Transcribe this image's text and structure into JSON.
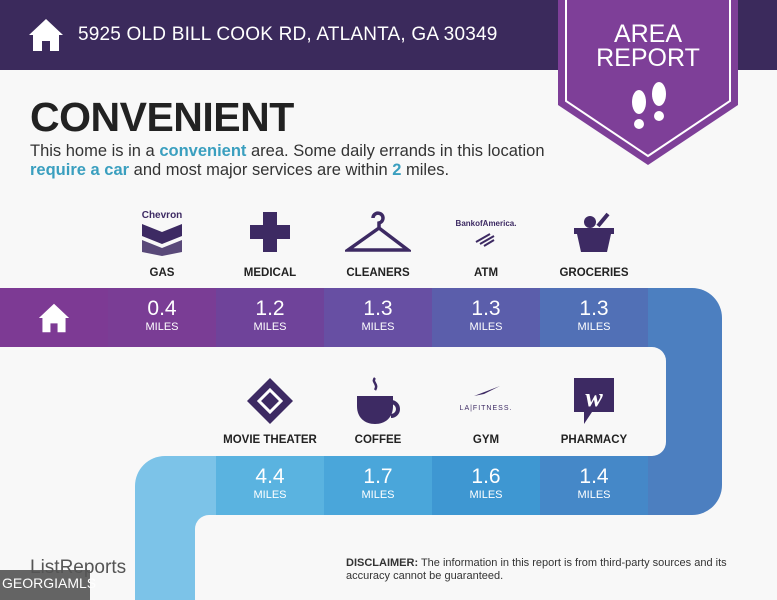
{
  "header": {
    "address": "5925 OLD BILL COOK RD, ATLANTA, GA 30349",
    "home_icon": "house-icon"
  },
  "badge": {
    "line1": "AREA",
    "line2": "REPORT",
    "icon": "footprints-icon"
  },
  "title": "CONVENIENT",
  "description": {
    "p1": "This home is in a ",
    "h1": "convenient",
    "p2": " area. Some daily errands in this location ",
    "h2": "require a car",
    "p3": " and most major services are within ",
    "h3": "2",
    "p4": " miles."
  },
  "row1": [
    {
      "label": "GAS",
      "value": "0.4",
      "unit": "MILES",
      "icon": "chevron-logo-icon",
      "logo_text": "Chevron",
      "color": "#7a3d95"
    },
    {
      "label": "MEDICAL",
      "value": "1.2",
      "unit": "MILES",
      "icon": "medical-cross-icon",
      "color": "#6f439a"
    },
    {
      "label": "CLEANERS",
      "value": "1.3",
      "unit": "MILES",
      "icon": "hanger-icon",
      "color": "#674fa3"
    },
    {
      "label": "ATM",
      "value": "1.3",
      "unit": "MILES",
      "icon": "bank-of-america-logo-icon",
      "logo_text": "BankofAmerica",
      "color": "#5b5eab"
    },
    {
      "label": "GROCERIES",
      "value": "1.3",
      "unit": "MILES",
      "icon": "grocery-basket-icon",
      "color": "#5170b6"
    }
  ],
  "row2": [
    {
      "label": "MOVIE THEATER",
      "value": "4.4",
      "unit": "MILES",
      "icon": "ticket-icon",
      "color": "#5ab3e0"
    },
    {
      "label": "COFFEE",
      "value": "1.7",
      "unit": "MILES",
      "icon": "coffee-cup-icon",
      "color": "#4aa6da"
    },
    {
      "label": "GYM",
      "value": "1.6",
      "unit": "MILES",
      "icon": "la-fitness-logo-icon",
      "logo_text": "LA|FITNESS.",
      "color": "#3e97d2"
    },
    {
      "label": "PHARMACY",
      "value": "1.4",
      "unit": "MILES",
      "icon": "walgreens-logo-icon",
      "logo_text": "W",
      "color": "#4588c8"
    }
  ],
  "footer": {
    "disclaimer_label": "DISCLAIMER:",
    "disclaimer": " The information in this report is from third-party sources and its accuracy cannot be guaranteed.",
    "brand": "ListReports",
    "watermark": "GEORGIAMLS"
  },
  "colors": {
    "header": "#3b2a5c",
    "badge": "#7e3f98",
    "accent": "#3a9fbf",
    "icon": "#3d2a63"
  }
}
